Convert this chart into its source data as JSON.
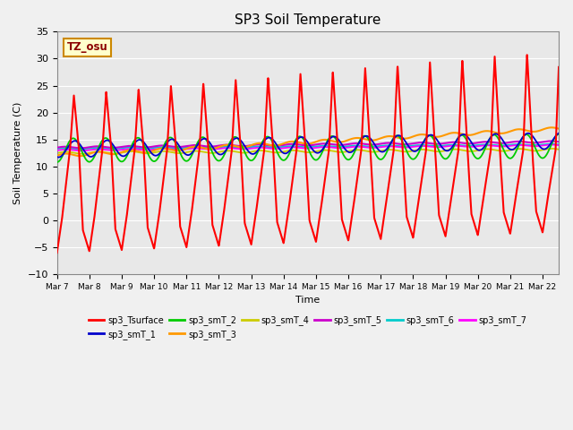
{
  "title": "SP3 Soil Temperature",
  "ylabel": "Soil Temperature (C)",
  "xlabel": "Time",
  "tz_label": "TZ_osu",
  "ylim": [
    -10,
    35
  ],
  "xlim_days": 15.5,
  "x_tick_positions": [
    0,
    1,
    2,
    3,
    4,
    5,
    6,
    7,
    8,
    9,
    10,
    11,
    12,
    13,
    14,
    15
  ],
  "x_tick_labels": [
    "Mar 7",
    "Mar 8",
    "Mar 9",
    "Mar 10",
    "Mar 11",
    "Mar 12",
    "Mar 13",
    "Mar 14",
    "Mar 15",
    "Mar 16",
    "Mar 17",
    "Mar 18",
    "Mar 19",
    "Mar 20",
    "Mar 21",
    "Mar 22"
  ],
  "fig_bg_color": "#f0f0f0",
  "plot_bg_color": "#e8e8e8",
  "grid_color": "#ffffff",
  "series_colors": {
    "sp3_Tsurface": "#ff0000",
    "sp3_smT_1": "#0000cc",
    "sp3_smT_2": "#00cc00",
    "sp3_smT_3": "#ff9900",
    "sp3_smT_4": "#cccc00",
    "sp3_smT_5": "#cc00cc",
    "sp3_smT_6": "#00cccc",
    "sp3_smT_7": "#ff00ff"
  }
}
